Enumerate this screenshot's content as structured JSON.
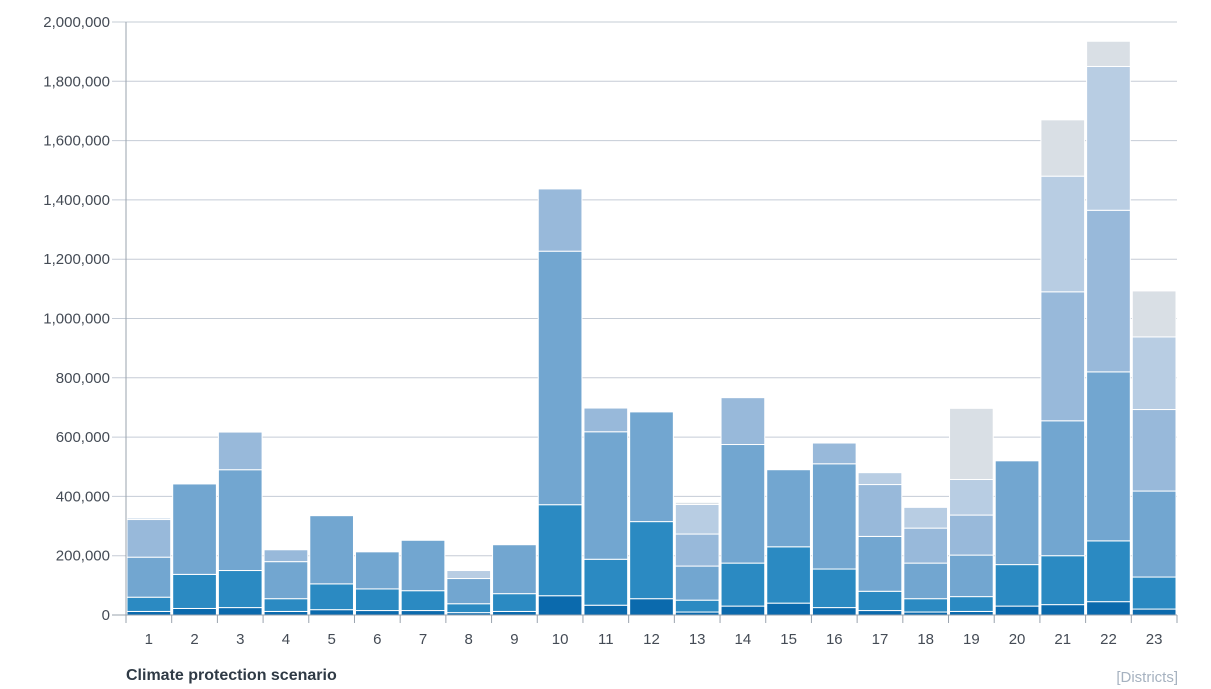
{
  "chart_data": {
    "type": "bar",
    "stacked": true,
    "xlabel": "Climate protection scenario",
    "unit_label": "[Districts]",
    "categories": [
      "1",
      "2",
      "3",
      "4",
      "5",
      "6",
      "7",
      "8",
      "9",
      "10",
      "11",
      "12",
      "13",
      "14",
      "15",
      "16",
      "17",
      "18",
      "19",
      "20",
      "21",
      "22",
      "23"
    ],
    "ylim": [
      0,
      2000000
    ],
    "yticks": [
      0,
      200000,
      400000,
      600000,
      800000,
      1000000,
      1200000,
      1400000,
      1600000,
      1800000,
      2000000
    ],
    "ytick_labels": [
      "0",
      "200,000",
      "400,000",
      "600,000",
      "800,000",
      "1,000,000",
      "1,200,000",
      "1,400,000",
      "1,600,000",
      "1,800,000",
      "2,000,000"
    ],
    "grid": true,
    "colors": [
      "#0b6aad",
      "#2b8ac2",
      "#72a6d0",
      "#98b9da",
      "#b8cde3",
      "#d9dfe5"
    ],
    "series": [
      {
        "values": [
          12000,
          22000,
          25000,
          12000,
          18000,
          15000,
          15000,
          8000,
          12000,
          65000,
          33000,
          55000,
          10000,
          30000,
          40000,
          25000,
          15000,
          10000,
          12000,
          30000,
          35000,
          45000,
          20000
        ]
      },
      {
        "values": [
          48000,
          115000,
          125000,
          43000,
          87000,
          73000,
          67000,
          30000,
          60000,
          307000,
          155000,
          260000,
          40000,
          145000,
          190000,
          130000,
          65000,
          45000,
          50000,
          140000,
          165000,
          205000,
          108000
        ]
      },
      {
        "values": [
          135000,
          305000,
          340000,
          125000,
          230000,
          125000,
          170000,
          85000,
          165000,
          855000,
          430000,
          370000,
          115000,
          400000,
          260000,
          355000,
          185000,
          120000,
          140000,
          350000,
          455000,
          570000,
          290000
        ]
      },
      {
        "values": [
          127000,
          0,
          127000,
          40000,
          0,
          0,
          0,
          0,
          0,
          210000,
          80000,
          0,
          108000,
          158000,
          0,
          70000,
          175000,
          118000,
          135000,
          0,
          435000,
          545000,
          275000
        ]
      },
      {
        "values": [
          5000,
          0,
          0,
          0,
          0,
          0,
          0,
          27000,
          0,
          0,
          0,
          0,
          100000,
          0,
          0,
          0,
          40000,
          70000,
          120000,
          0,
          390000,
          485000,
          245000
        ]
      },
      {
        "values": [
          0,
          0,
          0,
          0,
          0,
          0,
          0,
          0,
          0,
          0,
          0,
          0,
          7000,
          0,
          0,
          0,
          0,
          0,
          240000,
          0,
          190000,
          85000,
          155000
        ]
      }
    ]
  }
}
